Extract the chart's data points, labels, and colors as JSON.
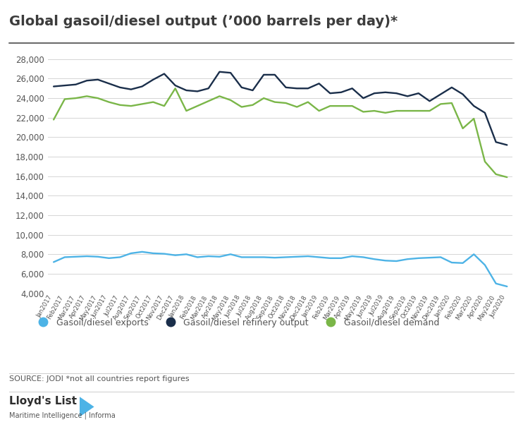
{
  "title": "Global gasoil/diesel output (’000 barrels per day)*",
  "source_text": "SOURCE: JODI *not all countries report figures",
  "x_labels": [
    "Jan2017",
    "Feb2017",
    "Mar2017",
    "Apr2017",
    "May2017",
    "Jun2017",
    "Jul2017",
    "Aug2017",
    "Sep2017",
    "Oct2017",
    "Nov2017",
    "Dec2017",
    "Jan2018",
    "Feb2018",
    "Mar2018",
    "Apr2018",
    "May2018",
    "Jun2018",
    "Jul2018",
    "Aug2018",
    "Sep2018",
    "Oct2018",
    "Nov2018",
    "Dec2018",
    "Jan2019",
    "Feb2019",
    "Mar2019",
    "Apr2019",
    "May2019",
    "Jun2019",
    "Jul2019",
    "Aug2019",
    "Sep2019",
    "Oct2019",
    "Nov2019",
    "Dec2019",
    "Jan2020",
    "Feb2020",
    "Mar2020",
    "Apr2020",
    "May2020",
    "Jun2020"
  ],
  "refinery_output": [
    25200,
    25300,
    25400,
    25800,
    25900,
    25500,
    25100,
    24900,
    25200,
    25900,
    26500,
    25300,
    24800,
    24700,
    25000,
    26700,
    26600,
    25100,
    24800,
    26400,
    26400,
    25100,
    25000,
    25000,
    25500,
    24500,
    24600,
    25000,
    24000,
    24500,
    24600,
    24500,
    24200,
    24500,
    23700,
    24400,
    25100,
    24400,
    23200,
    22500,
    19500,
    19200
  ],
  "demand": [
    21800,
    23900,
    24000,
    24200,
    24000,
    23600,
    23300,
    23200,
    23400,
    23600,
    23200,
    25000,
    22700,
    23200,
    23700,
    24200,
    23800,
    23100,
    23300,
    24000,
    23600,
    23500,
    23100,
    23600,
    22700,
    23200,
    23200,
    23200,
    22600,
    22700,
    22500,
    22700,
    22700,
    22700,
    22700,
    23400,
    23500,
    20900,
    21900,
    17500,
    16200,
    15900
  ],
  "exports": [
    7200,
    7700,
    7750,
    7800,
    7750,
    7600,
    7700,
    8100,
    8250,
    8100,
    8050,
    7900,
    8000,
    7700,
    7800,
    7750,
    8000,
    7700,
    7700,
    7700,
    7650,
    7700,
    7750,
    7800,
    7700,
    7600,
    7600,
    7800,
    7700,
    7500,
    7350,
    7300,
    7500,
    7600,
    7650,
    7700,
    7150,
    7100,
    8000,
    6900,
    5000,
    4700
  ],
  "refinery_color": "#1a2e4a",
  "demand_color": "#7ab648",
  "exports_color": "#4db3e6",
  "legend_exports": "Gasoil/diesel exports",
  "legend_refinery": "Gasoil/diesel refinery output",
  "legend_demand": "Gasoil/diesel demand",
  "ylim": [
    4000,
    29000
  ],
  "yticks": [
    4000,
    6000,
    8000,
    10000,
    12000,
    14000,
    16000,
    18000,
    20000,
    22000,
    24000,
    26000,
    28000
  ],
  "bg_color": "#ffffff",
  "grid_color": "#d5d5d5",
  "title_color": "#3c3c3c",
  "axis_text_color": "#555555",
  "line_width": 1.7,
  "fig_width": 7.42,
  "fig_height": 5.98
}
